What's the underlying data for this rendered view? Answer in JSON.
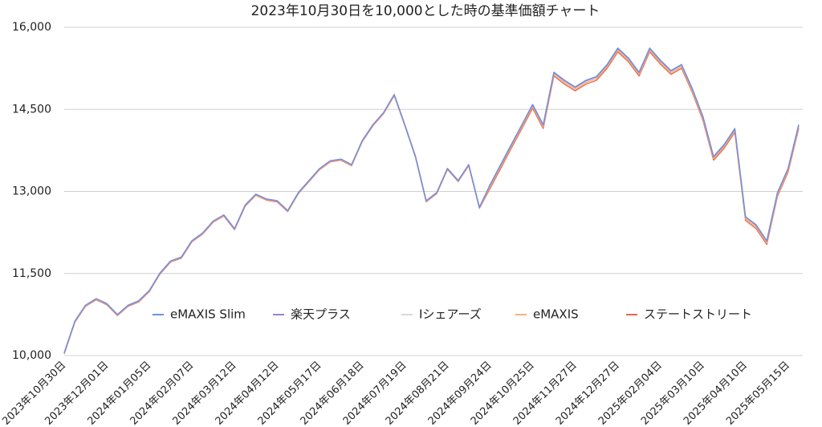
{
  "chart_data": {
    "type": "line",
    "title": "2023年10月30日を10,000とした時の基準価額チャート",
    "categories": [
      "2023年10月30日",
      null,
      null,
      null,
      "2023年12月01日",
      null,
      null,
      null,
      "2024年01月05日",
      null,
      null,
      null,
      "2024年02月07日",
      null,
      null,
      null,
      "2024年03月12日",
      null,
      null,
      null,
      "2024年04月12日",
      null,
      null,
      null,
      "2024年05月17日",
      null,
      null,
      null,
      "2024年06月18日",
      null,
      null,
      null,
      "2024年07月19日",
      null,
      null,
      null,
      "2024年08月21日",
      null,
      null,
      null,
      "2024年09月24日",
      null,
      null,
      null,
      "2024年10月25日",
      null,
      null,
      null,
      "2024年11月27日",
      null,
      null,
      null,
      "2024年12月27日",
      null,
      null,
      null,
      "2025年02月04日",
      null,
      null,
      null,
      "2025年03月10日",
      null,
      null,
      null,
      "2025年04月10日",
      null,
      null,
      null,
      "2025年05月15日",
      null
    ],
    "ylim": [
      10000,
      16000
    ],
    "yticks": [
      {
        "value": 10000,
        "label": "10,000"
      },
      {
        "value": 11500,
        "label": "11,500"
      },
      {
        "value": 13000,
        "label": "13,000"
      },
      {
        "value": 14500,
        "label": "14,500"
      },
      {
        "value": 16000,
        "label": "16,000"
      }
    ],
    "grid": true,
    "legend": "center",
    "series": [
      {
        "name": "eMAXIS Slim",
        "color": "#7090dd",
        "values": [
          10050,
          10630,
          10920,
          11040,
          10950,
          10750,
          10920,
          11000,
          11190,
          11510,
          11730,
          11800,
          12100,
          12240,
          12460,
          12570,
          12320,
          12750,
          12950,
          12860,
          12830,
          12650,
          12980,
          13200,
          13420,
          13560,
          13590,
          13490,
          13930,
          14220,
          14440,
          14770,
          14220,
          13640,
          12830,
          12980,
          13420,
          13200,
          13490,
          12710,
          13120,
          13490,
          13860,
          14220,
          14590,
          14220,
          15180,
          15030,
          14910,
          15030,
          15100,
          15320,
          15620,
          15440,
          15180,
          15620,
          15400,
          15210,
          15320,
          14880,
          14370,
          13640,
          13860,
          14150,
          12540,
          12390,
          12100,
          12980,
          13420,
          14220
        ]
      },
      {
        "name": "楽天プラス",
        "color": "#9b80d0",
        "values": [
          10050,
          10630,
          10920,
          11040,
          10950,
          10750,
          10920,
          11000,
          11190,
          11510,
          11730,
          11800,
          12100,
          12240,
          12460,
          12570,
          12320,
          12750,
          12950,
          12860,
          12830,
          12650,
          12980,
          13200,
          13420,
          13560,
          13590,
          13490,
          13930,
          14220,
          14440,
          14770,
          14220,
          13640,
          12830,
          12980,
          13420,
          13200,
          13490,
          12710,
          13110,
          13480,
          13850,
          14210,
          14580,
          14210,
          15170,
          15020,
          14900,
          15020,
          15090,
          15310,
          15610,
          15430,
          15170,
          15610,
          15390,
          15200,
          15310,
          14870,
          14360,
          13630,
          13850,
          14140,
          12530,
          12380,
          12090,
          12970,
          13410,
          14210
        ]
      },
      {
        "name": "Iシェアーズ",
        "color": "#d8d8d8",
        "values": [
          10050,
          10630,
          10920,
          11040,
          10950,
          10750,
          10920,
          11000,
          11190,
          11510,
          11730,
          11800,
          12100,
          12240,
          12460,
          12570,
          12320,
          12750,
          12950,
          12860,
          12830,
          12650,
          12980,
          13200,
          13420,
          13560,
          13590,
          13490,
          13930,
          14220,
          14440,
          14770,
          14220,
          13640,
          12830,
          12980,
          13420,
          13200,
          13490,
          12710,
          13120,
          13490,
          13860,
          14220,
          14590,
          14220,
          15180,
          15030,
          14910,
          15030,
          15100,
          15320,
          15620,
          15440,
          15180,
          15620,
          15400,
          15210,
          15320,
          14880,
          14370,
          13640,
          13860,
          14150,
          12540,
          12390,
          12100,
          12980,
          13420,
          14220
        ]
      },
      {
        "name": "eMAXIS",
        "color": "#f6b27c",
        "values": [
          10040,
          10620,
          10910,
          11030,
          10940,
          10740,
          10910,
          10990,
          11180,
          11500,
          11720,
          11790,
          12090,
          12230,
          12450,
          12560,
          12310,
          12740,
          12940,
          12850,
          12820,
          12640,
          12970,
          13190,
          13410,
          13550,
          13580,
          13480,
          13920,
          14210,
          14430,
          14760,
          14210,
          13630,
          12820,
          12970,
          13410,
          13190,
          13480,
          12700,
          13080,
          13450,
          13820,
          14180,
          14550,
          14180,
          15140,
          14990,
          14870,
          14990,
          15060,
          15280,
          15580,
          15400,
          15140,
          15580,
          15360,
          15170,
          15280,
          14840,
          14330,
          13600,
          13820,
          14110,
          12500,
          12350,
          12060,
          12940,
          13380,
          14180
        ]
      },
      {
        "name": "ステートストリート",
        "color": "#e8694a",
        "values": [
          10030,
          10610,
          10900,
          11020,
          10930,
          10730,
          10900,
          10980,
          11170,
          11490,
          11710,
          11780,
          12080,
          12220,
          12440,
          12550,
          12300,
          12730,
          12930,
          12840,
          12810,
          12630,
          12960,
          13180,
          13400,
          13540,
          13570,
          13470,
          13910,
          14200,
          14420,
          14750,
          14200,
          13620,
          12810,
          12960,
          13400,
          13180,
          13470,
          12690,
          13050,
          13420,
          13790,
          14150,
          14520,
          14150,
          15110,
          14960,
          14840,
          14960,
          15030,
          15250,
          15550,
          15370,
          15110,
          15550,
          15330,
          15140,
          15250,
          14810,
          14300,
          13570,
          13790,
          14080,
          12470,
          12320,
          12030,
          12910,
          13350,
          14150
        ]
      }
    ]
  }
}
